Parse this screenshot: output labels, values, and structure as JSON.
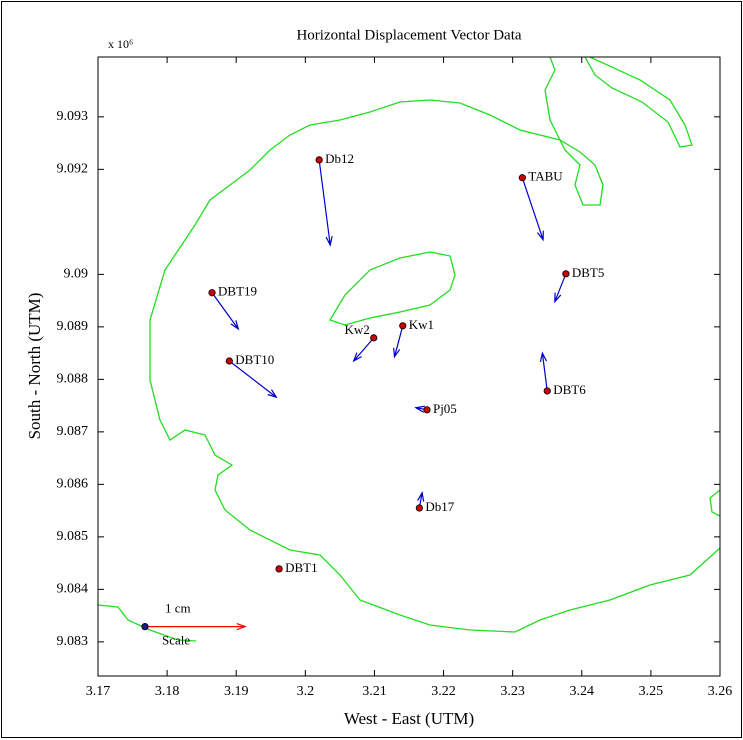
{
  "chart_data": {
    "type": "vector",
    "title": "Horizontal Displacement Vector Data",
    "x_label": "West - East (UTM)",
    "y_label": "South - North (UTM)",
    "y_multiplier": "x 10⁶",
    "xlim": [
      3.17,
      3.26
    ],
    "xticks": [
      3.17,
      3.18,
      3.19,
      3.2,
      3.21,
      3.22,
      3.23,
      3.24,
      3.25,
      3.26
    ],
    "ylim": [
      9.08235,
      9.09414
    ],
    "yticks": [
      9.083,
      9.084,
      9.085,
      9.086,
      9.087,
      9.088,
      9.089,
      9.09,
      9.092,
      9.093
    ],
    "points": {
      "point_color": "#cc0000",
      "arrow_color": "#0000cc",
      "names": [
        "Db12",
        "TABU",
        "DBT5",
        "DBT19",
        "DBT10",
        "Kw2",
        "Kw1",
        "DBT6",
        "Pj05",
        "Db17",
        "DBT1"
      ],
      "x": [
        3.202,
        3.2314,
        3.2377,
        3.1865,
        3.189,
        3.2099,
        3.2141,
        3.235,
        3.2176,
        3.2165,
        3.1962
      ],
      "y": [
        9.09218,
        9.09184,
        9.09001,
        9.08965,
        9.08835,
        9.08879,
        9.08902,
        9.08778,
        9.08742,
        9.08555,
        9.08439
      ],
      "u": [
        0.0016,
        0.003,
        -0.0016,
        0.0038,
        0.0068,
        -0.0029,
        -0.0012,
        -0.0007,
        -0.0016,
        0.0004,
        null
      ],
      "v": [
        -0.00162,
        -0.00118,
        -0.00053,
        -0.00069,
        -0.00069,
        -0.00044,
        -0.00059,
        0.00072,
        4e-05,
        0.00029,
        null
      ]
    },
    "scale": {
      "name": "Scale",
      "label": "1 cm",
      "x": 3.1768,
      "y": 9.08329,
      "u": 0.0145,
      "v": 0,
      "point_color": "#1a1a80",
      "arrow_color": "#ff0000"
    }
  }
}
